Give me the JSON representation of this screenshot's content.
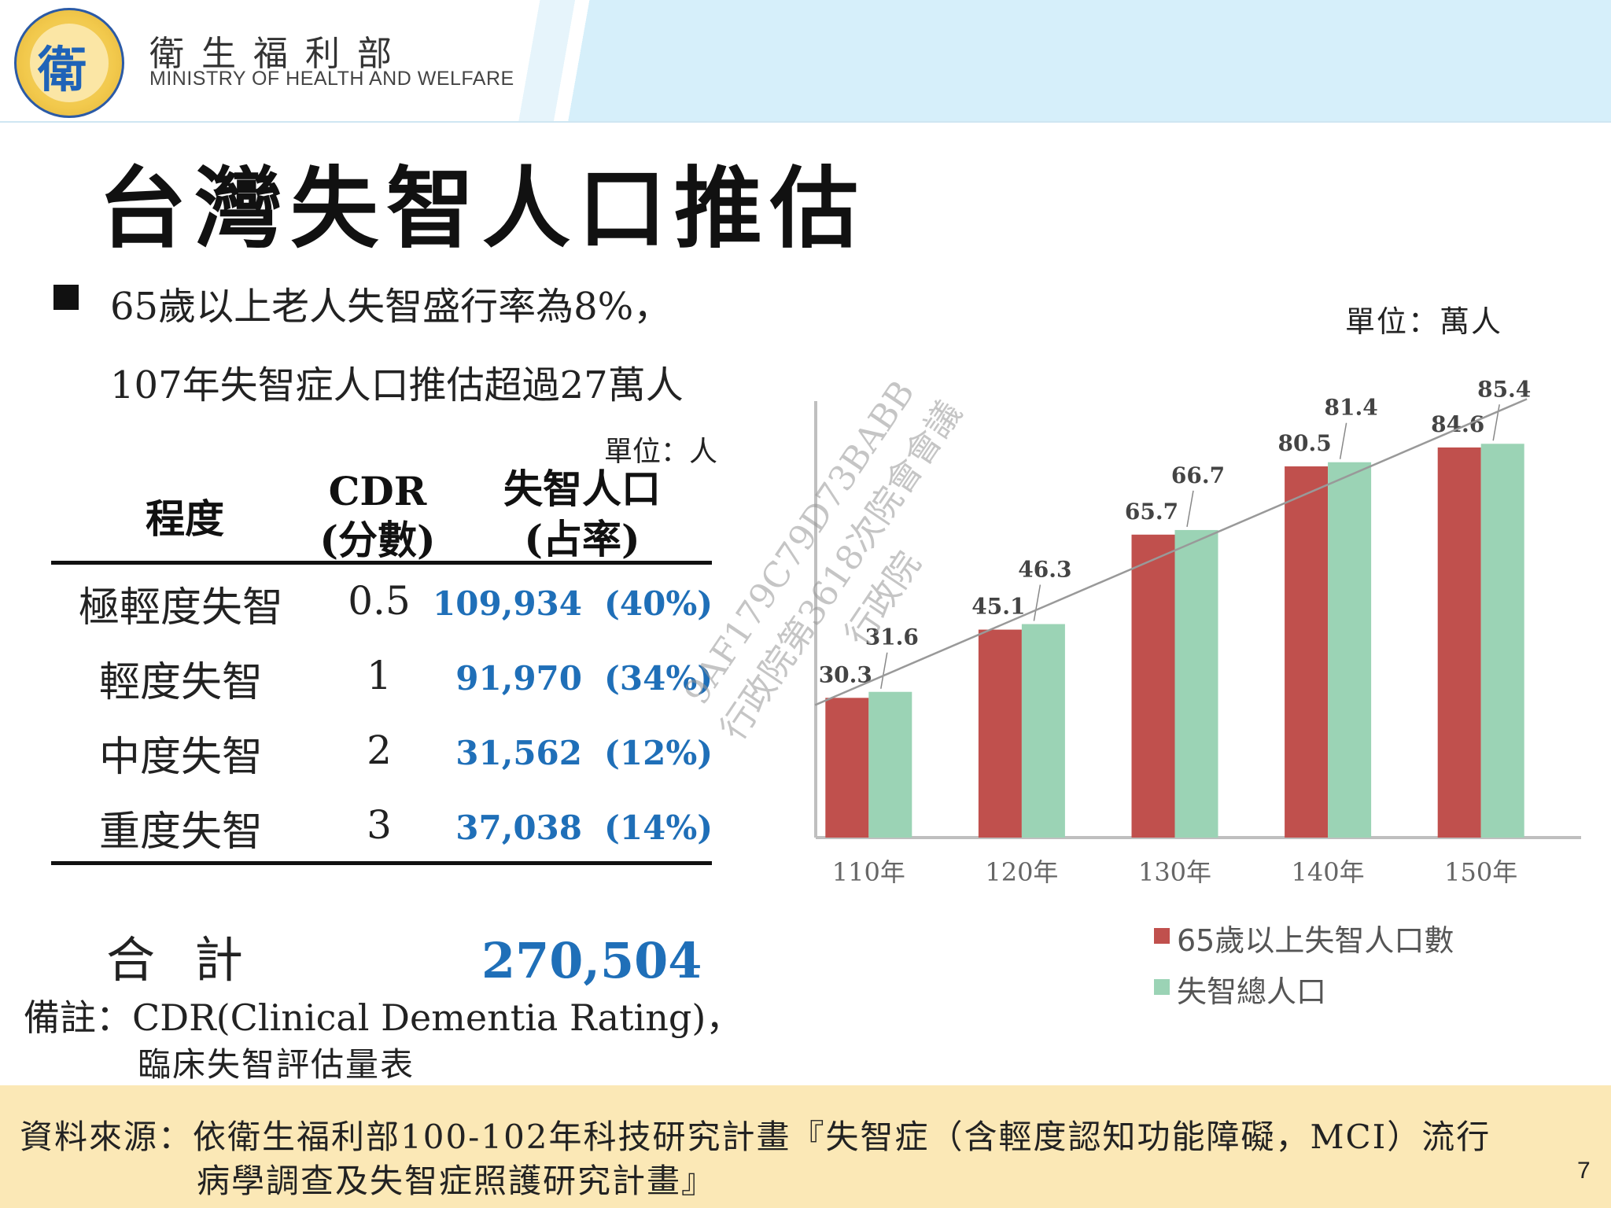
{
  "header": {
    "ministry_cn": "衛生福利部",
    "ministry_en": "MINISTRY OF HEALTH AND WELFARE",
    "logo_glyph": "衛"
  },
  "title": "台灣失智人口推估",
  "bullets": [
    "65歲以上老人失智盛行率為8%，",
    "107年失智症人口推估超過27萬人"
  ],
  "table": {
    "unit": "單位：人",
    "headers": {
      "level": "程度",
      "cdr": "CDR",
      "cdr_sub": "(分數)",
      "pop": "失智人口",
      "pop_sub": "(占率)"
    },
    "rows": [
      {
        "level": "極輕度失智",
        "cdr": "0.5",
        "count": "109,934",
        "pct": "(40%)"
      },
      {
        "level": "輕度失智",
        "cdr": "1",
        "count": "91,970",
        "pct": "(34%)"
      },
      {
        "level": "中度失智",
        "cdr": "2",
        "count": "31,562",
        "pct": "(12%)"
      },
      {
        "level": "重度失智",
        "cdr": "3",
        "count": "37,038",
        "pct": "(14%)"
      }
    ],
    "total_label": "合計",
    "total_value": "270,504",
    "note_1": "備註：CDR(Clinical Dementia Rating)，",
    "note_2": "臨床失智評估量表"
  },
  "chart_unit": "單位：萬人",
  "chart_data": {
    "type": "bar",
    "categories": [
      "110年",
      "120年",
      "130年",
      "140年",
      "150年"
    ],
    "series": [
      {
        "name": "65歲以上失智人口數",
        "values": [
          30.3,
          45.1,
          65.7,
          80.5,
          84.6
        ],
        "color": "#c0504d"
      },
      {
        "name": "失智總人口",
        "values": [
          31.6,
          46.3,
          66.7,
          81.4,
          85.4
        ],
        "color": "#9bd3b5"
      }
    ],
    "trendline": true,
    "ylim": [
      0,
      95
    ],
    "legend": "bottom-right",
    "grid": false
  },
  "watermark": [
    "9AF179C79D73BABB",
    "行政院第3618次院會會議",
    "行政院"
  ],
  "footer": {
    "line_1": "資料來源：依衛生福利部100-102年科技研究計畫『失智症（含輕度認知功能障礙，MCI）流行",
    "line_2": "病學調查及失智症照護研究計畫』",
    "page_number": "7"
  }
}
